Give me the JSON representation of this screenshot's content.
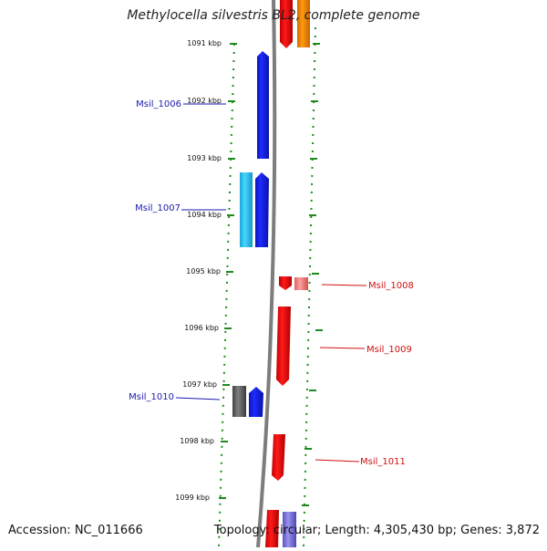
{
  "title": "Methylocella silvestris BL2, complete genome",
  "accession": "Accession: NC_011666",
  "topology": "Topology: circular; Length: 4,305,430 bp; Genes: 3,872",
  "colors": {
    "forward_blue": "#0b1cf0",
    "light_blue": "#2ec5f2",
    "reverse_red": "#f20a0a",
    "light_red": "#f08080",
    "orange": "#f58a00",
    "gray_gene": "#5e5e5e",
    "lavender": "#7b72d9",
    "green_tick": "#1f8a1f",
    "backbone": "#808080",
    "label_blue": "#1a1ab0",
    "label_red": "#d01010"
  },
  "ruler": [
    "1091 kbp",
    "1092 kbp",
    "1093 kbp",
    "1094 kbp",
    "1095 kbp",
    "1096 kbp",
    "1097 kbp",
    "1098 kbp",
    "1099 kbp"
  ],
  "gene_labels": [
    {
      "id": "msil-1006",
      "text": "Msil_1006",
      "strand": "left"
    },
    {
      "id": "msil-1007",
      "text": "Msil_1007",
      "strand": "left"
    },
    {
      "id": "msil-1008",
      "text": "Msil_1008",
      "strand": "right"
    },
    {
      "id": "msil-1009",
      "text": "Msil_1009",
      "strand": "right"
    },
    {
      "id": "msil-1010",
      "text": "Msil_1010",
      "strand": "left"
    },
    {
      "id": "msil-1011",
      "text": "Msil_1011",
      "strand": "right"
    }
  ]
}
